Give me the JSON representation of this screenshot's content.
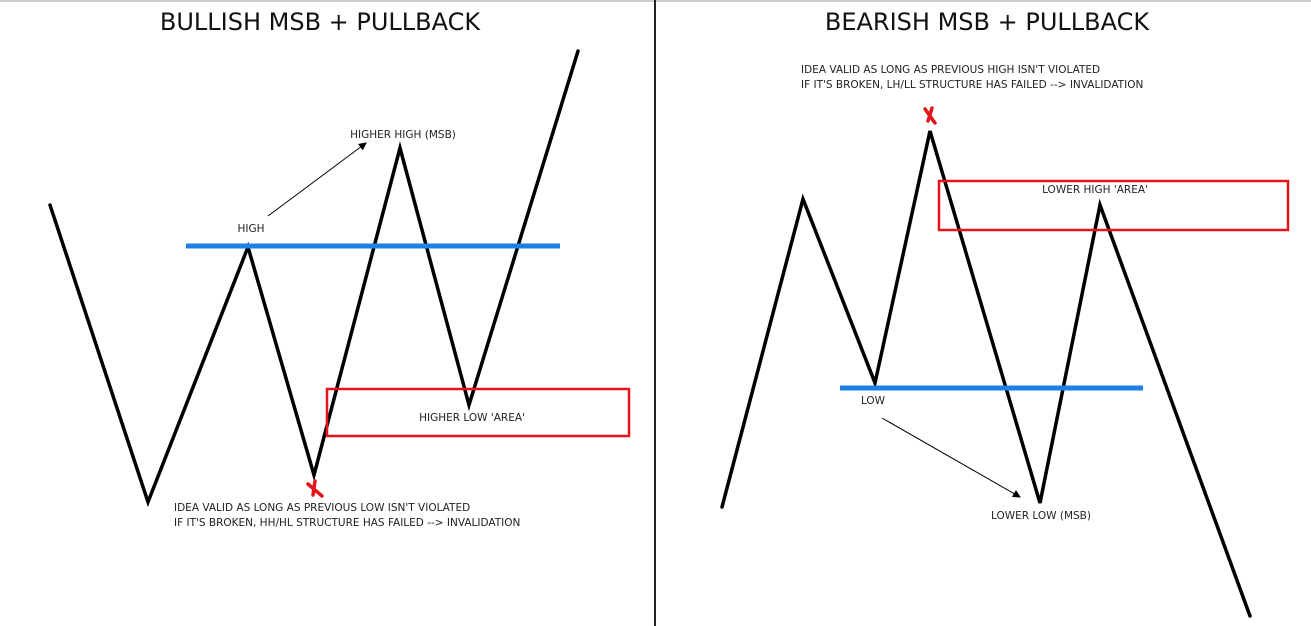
{
  "left_panel": {
    "title": "BULLISH MSB + PULLBACK",
    "label_high": "HIGH",
    "label_higher_high": "HIGHER HIGH (MSB)",
    "label_zone": "HIGHER LOW 'AREA'",
    "note_line1": "IDEA VALID AS LONG AS PREVIOUS LOW ISN'T VIOLATED",
    "note_line2": "IF IT'S BROKEN, HH/HL STRUCTURE HAS FAILED --> INVALIDATION"
  },
  "right_panel": {
    "title": "BEARISH MSB + PULLBACK",
    "label_low": "LOW",
    "label_lower_low": "LOWER LOW (MSB)",
    "label_zone": "LOWER HIGH 'AREA'",
    "note_line1": "IDEA VALID AS LONG AS PREVIOUS HIGH ISN'T VIOLATED",
    "note_line2": "IF IT'S BROKEN, LH/LL STRUCTURE HAS FAILED --> INVALIDATION"
  },
  "colors": {
    "price_line": "#000000",
    "level_line": "#1e7fe6",
    "zone_box": "#e3151a",
    "invalidation_mark": "#e3151a",
    "divider": "#222222"
  }
}
